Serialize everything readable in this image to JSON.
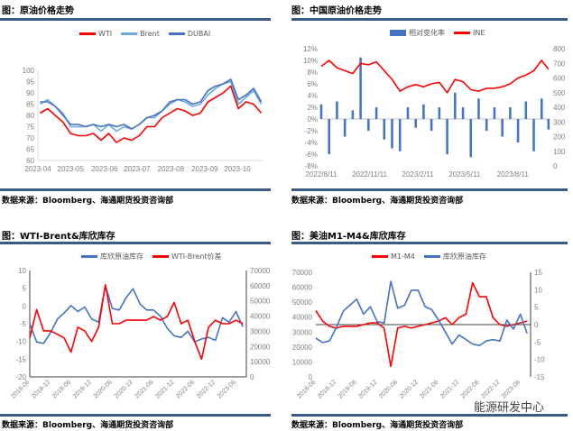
{
  "source_note": "数据来源：Bloomberg、海通期货投资咨询部",
  "watermark": "能源研发中心",
  "chart_data": [
    {
      "type": "line",
      "title": "图：原油价格走势",
      "x": [
        "2023-04-03",
        "2023-04-10",
        "2023-04-17",
        "2023-04-24",
        "2023-05-01",
        "2023-05-08",
        "2023-05-15",
        "2023-05-22",
        "2023-05-29",
        "2023-06-05",
        "2023-06-12",
        "2023-06-19",
        "2023-06-26",
        "2023-07-03",
        "2023-07-10",
        "2023-07-17",
        "2023-07-24",
        "2023-07-31",
        "2023-08-07",
        "2023-08-14",
        "2023-08-21",
        "2023-08-28",
        "2023-09-04",
        "2023-09-11",
        "2023-09-18",
        "2023-09-25",
        "2023-10-02",
        "2023-10-09",
        "2023-10-16",
        "2023-10-23"
      ],
      "xlim": [
        "2023-04-01",
        "2023-10-25"
      ],
      "xticks": [
        "2023-04",
        "2023-05",
        "2023-06",
        "2023-07",
        "2023-08",
        "2023-09",
        "2023-10"
      ],
      "ylim_left": [
        60,
        100
      ],
      "yticks_left": [
        "60",
        "65",
        "70",
        "75",
        "80",
        "85",
        "90",
        "95",
        "100"
      ],
      "series": [
        {
          "name": "WTI",
          "color": "#ff0000",
          "axis": "left",
          "style": "line",
          "values": [
            81,
            83,
            80,
            77,
            72,
            71,
            71,
            72,
            69,
            72,
            68,
            70,
            69,
            71,
            75,
            75,
            79,
            81,
            83,
            82,
            80,
            81,
            86,
            88,
            90,
            93,
            83,
            86,
            85,
            81
          ]
        },
        {
          "name": "Brent",
          "color": "#6fa8dc",
          "axis": "left",
          "style": "line",
          "values": [
            85,
            87,
            84,
            81,
            75,
            75,
            75,
            76,
            73,
            76,
            73,
            75,
            74,
            76,
            79,
            79,
            82,
            85,
            87,
            86,
            84,
            85,
            89,
            92,
            94,
            95,
            85,
            88,
            91,
            85
          ]
        },
        {
          "name": "DUBAI",
          "color": "#4472c4",
          "axis": "left",
          "style": "line",
          "values": [
            86,
            86,
            84,
            80,
            76,
            76,
            75,
            76,
            75,
            76,
            75,
            76,
            74,
            76,
            79,
            80,
            82,
            86,
            87,
            87,
            85,
            86,
            91,
            93,
            94,
            96,
            87,
            89,
            92,
            86
          ]
        }
      ]
    },
    {
      "type": "bar+line",
      "title": "图：中国原油价格走势",
      "x": [
        "2022-08-11",
        "2022-08-26",
        "2022-09-10",
        "2022-09-25",
        "2022-10-10",
        "2022-10-25",
        "2022-11-09",
        "2022-11-24",
        "2022-12-09",
        "2022-12-24",
        "2023-01-08",
        "2023-01-23",
        "2023-02-07",
        "2023-02-22",
        "2023-03-09",
        "2023-03-24",
        "2023-04-08",
        "2023-04-23",
        "2023-05-08",
        "2023-05-23",
        "2023-06-07",
        "2023-06-22",
        "2023-07-07",
        "2023-07-22",
        "2023-08-06",
        "2023-08-21",
        "2023-09-05",
        "2023-09-20",
        "2023-10-05",
        "2023-10-18"
      ],
      "xlim": [
        "2022-08-11",
        "2023-10-20"
      ],
      "xticks": [
        "2022/8/11",
        "2022/11/11",
        "2023/2/11",
        "2023/5/11",
        "2023/8/11"
      ],
      "ylim_left": [
        -8,
        12
      ],
      "yticks_left": [
        "-8%",
        "-6%",
        "-4%",
        "-2%",
        "0%",
        "2%",
        "4%",
        "6%",
        "8%",
        "10%",
        "12%"
      ],
      "ylim_right": [
        0,
        800
      ],
      "yticks_right": [
        "0",
        "100",
        "200",
        "300",
        "400",
        "500",
        "600",
        "700",
        "800"
      ],
      "series": [
        {
          "name": "相对变化率",
          "color": "#4472c4",
          "axis": "left",
          "style": "bar",
          "values": [
            2.5,
            -6,
            3,
            -3,
            1.5,
            10.5,
            -2,
            2,
            -3.5,
            -5,
            -5.5,
            2,
            -1.5,
            2.5,
            -2,
            2,
            -6,
            4.5,
            2,
            -6.5,
            3.5,
            -2,
            2,
            -3,
            2,
            -4,
            3,
            -5.5,
            3.5,
            -1.8
          ]
        },
        {
          "name": "INE",
          "color": "#ff0000",
          "axis": "right",
          "style": "line",
          "values": [
            680,
            720,
            670,
            650,
            630,
            700,
            690,
            710,
            650,
            590,
            510,
            540,
            555,
            540,
            560,
            570,
            500,
            590,
            575,
            520,
            510,
            530,
            530,
            540,
            560,
            600,
            620,
            650,
            720,
            660
          ]
        }
      ]
    },
    {
      "type": "line",
      "title": "图：WTI-Brent&库欣库存",
      "x": [
        "2018-06",
        "2018-08",
        "2018-10",
        "2018-12",
        "2019-02",
        "2019-04",
        "2019-06",
        "2019-08",
        "2019-10",
        "2019-12",
        "2020-02",
        "2020-04",
        "2020-06",
        "2020-08",
        "2020-10",
        "2020-12",
        "2021-02",
        "2021-04",
        "2021-06",
        "2021-08",
        "2021-10",
        "2021-12",
        "2022-02",
        "2022-04",
        "2022-06",
        "2022-08",
        "2022-10",
        "2022-12",
        "2023-02",
        "2023-04",
        "2023-06",
        "2023-08"
      ],
      "xlim": [
        "2018-06",
        "2023-09"
      ],
      "xticks": [
        "2018-06",
        "2018-12",
        "2019-06",
        "2019-12",
        "2020-06",
        "2020-12",
        "2021-06",
        "2021-12",
        "2022-06",
        "2022-12",
        "2023-06"
      ],
      "ylim_left": [
        -20,
        10
      ],
      "yticks_left": [
        "-20",
        "-15",
        "-10",
        "-5",
        "0",
        "5",
        "10"
      ],
      "ylim_right": [
        0,
        70000
      ],
      "yticks_right": [
        "0",
        "10000",
        "20000",
        "30000",
        "40000",
        "50000",
        "60000",
        "70000"
      ],
      "series": [
        {
          "name": "库欣原油库存",
          "color": "#4472c4",
          "axis": "right",
          "style": "line",
          "values": [
            35000,
            23000,
            22000,
            29000,
            38000,
            42000,
            47000,
            43000,
            46000,
            38000,
            36000,
            60000,
            45000,
            44000,
            52000,
            58000,
            48000,
            44000,
            44000,
            40000,
            32000,
            27000,
            26000,
            30000,
            23000,
            25000,
            26000,
            24000,
            39000,
            36000,
            43000,
            33000
          ]
        },
        {
          "name": "WTI-Brent价差",
          "color": "#ff0000",
          "axis": "left",
          "style": "line",
          "values": [
            -9,
            -1,
            -7,
            -7,
            -8,
            -9,
            -13,
            -6,
            -7,
            -10,
            -6,
            6,
            -5,
            -5,
            -4,
            -4,
            -4,
            -4,
            -3,
            -4,
            -3,
            1,
            -5,
            -4,
            -10,
            -15,
            -6,
            -4,
            -5,
            -5,
            -4,
            -5
          ]
        }
      ]
    },
    {
      "type": "line",
      "title": "图：美油M1-M4&库欣库存",
      "x": [
        "2018-06",
        "2018-08",
        "2018-10",
        "2018-12",
        "2019-02",
        "2019-04",
        "2019-06",
        "2019-08",
        "2019-10",
        "2019-12",
        "2020-02",
        "2020-04",
        "2020-06",
        "2020-08",
        "2020-10",
        "2020-12",
        "2021-02",
        "2021-04",
        "2021-06",
        "2021-08",
        "2021-10",
        "2021-12",
        "2022-02",
        "2022-04",
        "2022-06",
        "2022-08",
        "2022-10",
        "2022-12",
        "2023-02",
        "2023-04",
        "2023-06",
        "2023-08"
      ],
      "xlim": [
        "2018-06",
        "2023-09"
      ],
      "xticks": [
        "2018-06",
        "2018-12",
        "2019-06",
        "2019-12",
        "2020-06",
        "2020-12",
        "2021-06",
        "2021-12",
        "2022-06",
        "2022-12",
        "2023-06"
      ],
      "ylim_left": [
        0,
        70000
      ],
      "yticks_left": [
        "0",
        "10000",
        "20000",
        "30000",
        "40000",
        "50000",
        "60000",
        "70000"
      ],
      "ylim_right": [
        -15,
        15
      ],
      "yticks_right": [
        "-15",
        "-10",
        "-5",
        "0",
        "5",
        "10",
        "15"
      ],
      "series": [
        {
          "name": "M1-M4",
          "color": "#ff0000",
          "axis": "right",
          "style": "line",
          "values": [
            4,
            1,
            -0.5,
            -1,
            -0.5,
            -0.5,
            -0.5,
            0,
            0.5,
            0.5,
            -1,
            -12,
            -1,
            -0.5,
            -1,
            -0.5,
            0,
            0.5,
            1,
            2,
            0,
            2,
            3,
            12,
            8,
            8,
            2,
            0,
            -0.5,
            0,
            0.5,
            1
          ]
        },
        {
          "name": "库欣原油库存",
          "color": "#4472c4",
          "axis": "left",
          "style": "line",
          "values": [
            26000,
            23000,
            24000,
            33000,
            44000,
            48000,
            52000,
            42000,
            47000,
            37000,
            36000,
            64000,
            46000,
            48000,
            58000,
            58000,
            47000,
            45000,
            38000,
            30000,
            22000,
            28000,
            25000,
            22000,
            21000,
            24000,
            25000,
            24000,
            38000,
            32000,
            42000,
            29000
          ]
        }
      ]
    }
  ]
}
